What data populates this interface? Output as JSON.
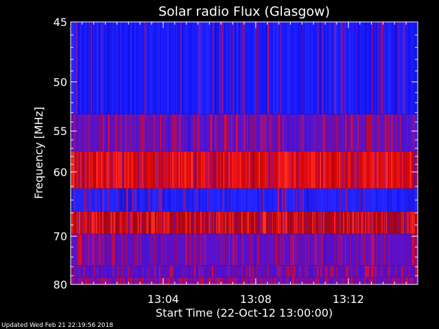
{
  "chart_data": {
    "type": "heatmap",
    "title": "Solar radio Flux (Glasgow)",
    "xlabel": "Start Time (22-Oct-12 13:00:00)",
    "ylabel": "Frequency [MHz]",
    "x_unit": "time (HH:MM)",
    "xlim": [
      "13:00:00",
      "13:15:00"
    ],
    "ylim": [
      45,
      80
    ],
    "y_inverted": true,
    "x_ticks": [
      "13:04",
      "13:08",
      "13:12"
    ],
    "y_ticks": [
      "45",
      "50",
      "55",
      "60",
      "70",
      "80"
    ],
    "y_tick_values": [
      45,
      50,
      55,
      60,
      70,
      80
    ],
    "frequency_bands": [
      {
        "from": 45.0,
        "to": 53.2,
        "level": 0.05,
        "color": "#1a1aff"
      },
      {
        "from": 53.2,
        "to": 57.4,
        "level": 0.35,
        "color": "#5a14c8"
      },
      {
        "from": 57.4,
        "to": 62.3,
        "level": 0.9,
        "color": "#d80808"
      },
      {
        "from": 62.3,
        "to": 65.8,
        "level": 0.1,
        "color": "#2222ff"
      },
      {
        "from": 65.8,
        "to": 69.6,
        "level": 0.75,
        "color": "#a8081a"
      },
      {
        "from": 69.6,
        "to": 75.8,
        "level": 0.45,
        "color": "#5c10c8"
      },
      {
        "from": 75.8,
        "to": 78.4,
        "level": 0.45,
        "color": "#5410cc"
      },
      {
        "from": 78.4,
        "to": 80.0,
        "level": 0.6,
        "color": "#8a0c9c"
      }
    ],
    "colors": {
      "background": "#000000",
      "frame": "#ffffff",
      "low": "#0000ff",
      "high": "#ff0000"
    }
  },
  "footer": {
    "updated": "Updated Wed Feb 21 22:19:56 2018"
  }
}
